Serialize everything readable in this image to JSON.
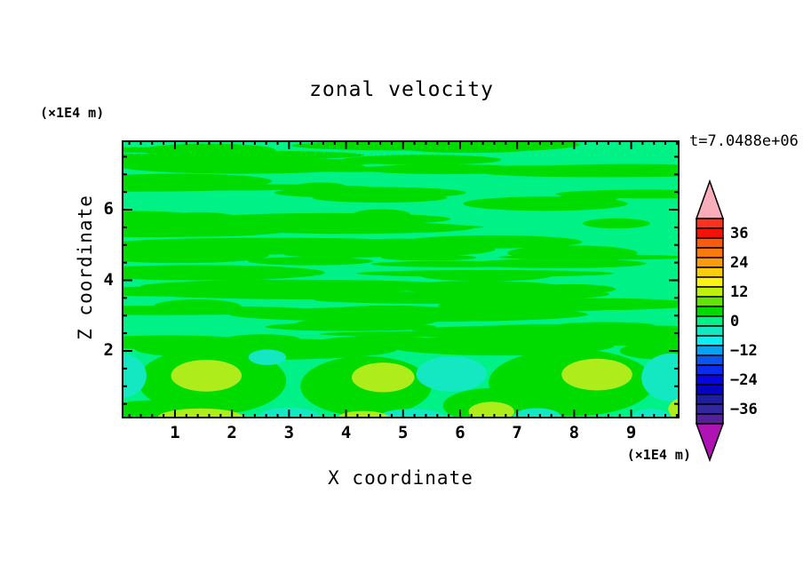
{
  "title": "zonal velocity",
  "axes": {
    "x": {
      "label": "X coordinate",
      "unit": "(×1E4 m)",
      "major_ticks": [
        1,
        2,
        3,
        4,
        5,
        6,
        7,
        8,
        9
      ],
      "minor_step": 0.2,
      "range": [
        0.07,
        9.85
      ]
    },
    "z": {
      "label": "Z coordinate",
      "unit": "(×1E4 m)",
      "major_ticks": [
        2,
        4,
        6
      ],
      "minor_step": 0.5,
      "range": [
        0.09,
        7.96
      ]
    }
  },
  "chart_data": {
    "type": "heatmap",
    "title": "zonal velocity",
    "xlabel": "X coordinate",
    "x_unit": "×1E4 m",
    "ylabel": "Z coordinate",
    "y_unit": "×1E4 m",
    "xlim": [
      0.07,
      9.85
    ],
    "ylim": [
      0.09,
      7.96
    ],
    "time_annotation": "t=7.0488e+06",
    "colorbar": {
      "tick_labels": [
        "36",
        "24",
        "12",
        "0",
        "−12",
        "−24",
        "−36"
      ],
      "tick_values": [
        36,
        24,
        12,
        0,
        -12,
        -24,
        -36
      ],
      "level_step": 4,
      "value_range": [
        -42,
        42
      ],
      "over_color": "#F7AEBA",
      "under_color": "#AF13B3",
      "colors_top_to_bottom": [
        "#FC3221",
        "#F51205",
        "#FB5A0B",
        "#FB7A0D",
        "#FB9B10",
        "#FCCC11",
        "#FCF314",
        "#BEF20D",
        "#63E503",
        "#00DB00",
        "#00F287",
        "#14E8C2",
        "#0BEFF2",
        "#0AA2F0",
        "#0A55F0",
        "#0A2BF0",
        "#0505E6",
        "#0404C2",
        "#1D1DA5",
        "#32279E",
        "#55209B"
      ]
    },
    "palette": {
      "background": "#00F287",
      "positive_band": "#00DB00",
      "high": "#AEEC1C",
      "low": "#14E8C2"
    },
    "field_summary": {
      "background_level": "−2 to +2 (spring green)",
      "upper_region": "thin horizontal streaks of +2 to +6 between z≈2 and z≈8 (×1E4 m)",
      "lower_region": "large convective cells below z≈2: maxima ≈ +8 to +12 (yellow-green), minima ≈ −4 to −8 (turquoise)"
    },
    "streaks": {
      "seed": 11,
      "count": 85,
      "level": "+2 to +6"
    },
    "features": [
      {
        "color": "positive_band",
        "level": 4,
        "x": 1.65,
        "z": 1.15,
        "rx": 1.3,
        "ry": 0.95
      },
      {
        "color": "positive_band",
        "level": 4,
        "x": 4.35,
        "z": 1.0,
        "rx": 1.15,
        "ry": 0.85
      },
      {
        "color": "positive_band",
        "level": 4,
        "x": 7.95,
        "z": 1.1,
        "rx": 1.45,
        "ry": 0.95
      },
      {
        "color": "positive_band",
        "level": 4,
        "x": 2.6,
        "z": 2.05,
        "rx": 2.3,
        "ry": 0.3
      },
      {
        "color": "positive_band",
        "level": 4,
        "x": 6.7,
        "z": 2.15,
        "rx": 2.0,
        "ry": 0.28
      },
      {
        "color": "positive_band",
        "level": 4,
        "x": 9.6,
        "z": 2.0,
        "rx": 0.8,
        "ry": 0.25
      },
      {
        "color": "positive_band",
        "level": 4,
        "x": 0.6,
        "z": 0.25,
        "rx": 0.9,
        "ry": 0.35
      },
      {
        "color": "positive_band",
        "level": 4,
        "x": 6.6,
        "z": 0.45,
        "rx": 0.9,
        "ry": 0.5
      },
      {
        "color": "low",
        "level": -6,
        "x": 0.08,
        "z": 1.3,
        "rx": 0.42,
        "ry": 0.62
      },
      {
        "color": "low",
        "level": -6,
        "x": 2.62,
        "z": 1.82,
        "rx": 0.33,
        "ry": 0.22
      },
      {
        "color": "low",
        "level": -6,
        "x": 5.85,
        "z": 1.35,
        "rx": 0.62,
        "ry": 0.5
      },
      {
        "color": "low",
        "level": -6,
        "x": 9.7,
        "z": 1.25,
        "rx": 0.52,
        "ry": 0.68
      },
      {
        "color": "low",
        "level": -6,
        "x": 3.0,
        "z": 0.12,
        "rx": 0.55,
        "ry": 0.28
      },
      {
        "color": "low",
        "level": -6,
        "x": 5.15,
        "z": 0.1,
        "rx": 0.6,
        "ry": 0.26
      },
      {
        "color": "low",
        "level": -6,
        "x": 7.35,
        "z": 0.14,
        "rx": 0.42,
        "ry": 0.24
      },
      {
        "color": "low",
        "level": -6,
        "x": 9.35,
        "z": 0.14,
        "rx": 0.33,
        "ry": 0.22
      },
      {
        "color": "high",
        "level": 10,
        "x": 1.55,
        "z": 1.3,
        "rx": 0.62,
        "ry": 0.45
      },
      {
        "color": "high",
        "level": 10,
        "x": 4.65,
        "z": 1.25,
        "rx": 0.55,
        "ry": 0.42
      },
      {
        "color": "high",
        "level": 10,
        "x": 8.4,
        "z": 1.33,
        "rx": 0.62,
        "ry": 0.45
      },
      {
        "color": "high",
        "level": 10,
        "x": 1.45,
        "z": 0.12,
        "rx": 0.75,
        "ry": 0.25
      },
      {
        "color": "high",
        "level": 10,
        "x": 4.3,
        "z": 0.1,
        "rx": 0.45,
        "ry": 0.2
      },
      {
        "color": "high",
        "level": 10,
        "x": 6.55,
        "z": 0.28,
        "rx": 0.4,
        "ry": 0.28
      },
      {
        "color": "high",
        "level": 10,
        "x": 9.95,
        "z": 0.35,
        "rx": 0.3,
        "ry": 0.33
      }
    ]
  }
}
